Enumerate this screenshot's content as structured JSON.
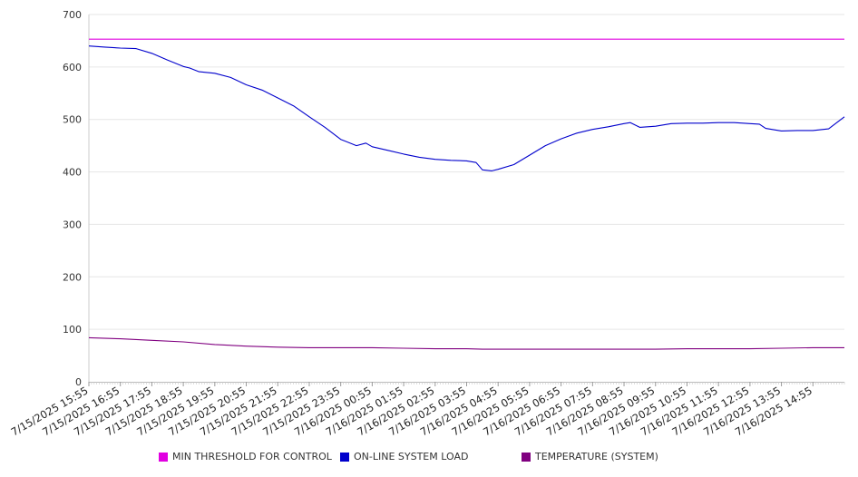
{
  "chart_data": {
    "type": "line",
    "title": "",
    "xlabel": "",
    "ylabel": "",
    "ylim": [
      0,
      700
    ],
    "yticks": [
      0,
      100,
      200,
      300,
      400,
      500,
      600,
      700
    ],
    "x_tick_labels": [
      "7/15/2025 15:55",
      "7/15/2025 16:55",
      "7/15/2025 17:55",
      "7/15/2025 18:55",
      "7/15/2025 19:55",
      "7/15/2025 20:55",
      "7/15/2025 21:55",
      "7/15/2025 22:55",
      "7/15/2025 23:55",
      "7/16/2025 00:55",
      "7/16/2025 01:55",
      "7/16/2025 02:55",
      "7/16/2025 03:55",
      "7/16/2025 04:55",
      "7/16/2025 05:55",
      "7/16/2025 06:55",
      "7/16/2025 07:55",
      "7/16/2025 08:55",
      "7/16/2025 09:55",
      "7/16/2025 10:55",
      "7/16/2025 11:55",
      "7/16/2025 12:55",
      "7/16/2025 13:55",
      "7/16/2025 14:55"
    ],
    "x_start": "7/15/2025 15:55",
    "x_end": "7/16/2025 15:55",
    "x_span_hours": 24,
    "grid": true,
    "legend_position": "bottom",
    "series": [
      {
        "name": "MIN THRESHOLD FOR CONTROL",
        "color": "#e100e1",
        "x_hours": [
          0,
          24
        ],
        "values": [
          653,
          653
        ]
      },
      {
        "name": "ON-LINE SYSTEM LOAD",
        "color": "#0000cc",
        "x_hours": [
          0,
          0.5,
          1,
          1.5,
          2,
          2.5,
          3,
          3.2,
          3.5,
          4,
          4.5,
          5,
          5.5,
          6,
          6.5,
          7,
          7.5,
          8,
          8.5,
          8.8,
          9,
          9.5,
          10,
          10.5,
          11,
          11.5,
          12,
          12.3,
          12.5,
          12.8,
          13,
          13.5,
          14,
          14.5,
          15,
          15.5,
          16,
          16.5,
          17,
          17.2,
          17.5,
          18,
          18.5,
          19,
          19.5,
          20,
          20.5,
          21,
          21.3,
          21.5,
          22,
          22.5,
          23,
          23.5,
          24
        ],
        "values": [
          640,
          638,
          636,
          635,
          626,
          613,
          601,
          598,
          591,
          588,
          580,
          566,
          556,
          541,
          526,
          505,
          485,
          462,
          450,
          455,
          448,
          441,
          434,
          428,
          424,
          422,
          421,
          418,
          404,
          402,
          405,
          414,
          432,
          450,
          463,
          474,
          481,
          486,
          492,
          494,
          485,
          487,
          492,
          493,
          493,
          494,
          494,
          492,
          491,
          483,
          478,
          479,
          479,
          482,
          505
        ]
      },
      {
        "name": "TEMPERATURE (SYSTEM)",
        "color": "#800080",
        "x_hours": [
          0,
          1,
          2,
          3,
          4,
          5,
          6,
          7,
          8,
          9,
          10,
          11,
          12,
          12.5,
          13,
          14,
          15,
          16,
          17,
          18,
          19,
          20,
          21,
          22,
          23,
          24
        ],
        "values": [
          84,
          82,
          79,
          76,
          71,
          68,
          66,
          65,
          65,
          65,
          64,
          63,
          63,
          62,
          62,
          62,
          62,
          62,
          62,
          62,
          63,
          63,
          63,
          64,
          65,
          65
        ]
      }
    ]
  }
}
